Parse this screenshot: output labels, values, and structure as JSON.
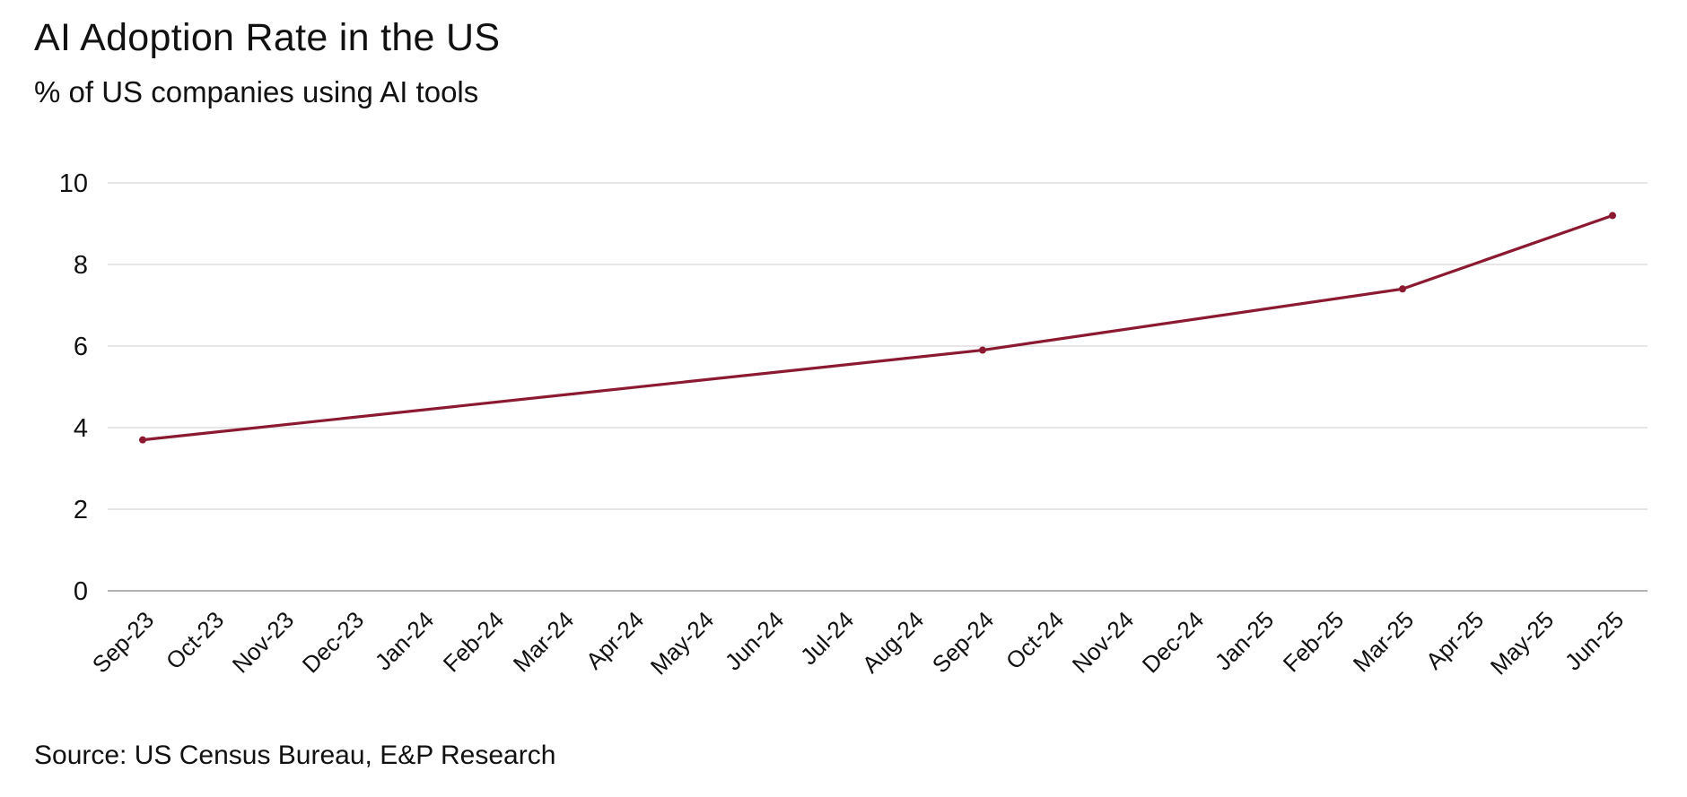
{
  "chart_data": {
    "type": "line",
    "title": "AI Adoption Rate in the US",
    "subtitle": "% of US companies using AI tools",
    "source": "Source: US Census Bureau, E&P Research",
    "xlabel": "",
    "ylabel": "",
    "categories": [
      "Sep-23",
      "Oct-23",
      "Nov-23",
      "Dec-23",
      "Jan-24",
      "Feb-24",
      "Mar-24",
      "Apr-24",
      "May-24",
      "Jun-24",
      "Jul-24",
      "Aug-24",
      "Sep-24",
      "Oct-24",
      "Nov-24",
      "Dec-24",
      "Jan-25",
      "Feb-25",
      "Mar-25",
      "Apr-25",
      "May-25",
      "Jun-25"
    ],
    "series": [
      {
        "name": "AI adoption rate",
        "color": "#8B1A30",
        "values": [
          3.7,
          null,
          null,
          null,
          null,
          null,
          null,
          null,
          null,
          null,
          null,
          null,
          5.9,
          null,
          null,
          null,
          null,
          null,
          7.4,
          null,
          null,
          9.2
        ]
      }
    ],
    "ylim": [
      0,
      10
    ],
    "yticks": [
      0,
      2,
      4,
      6,
      8,
      10
    ],
    "grid": true,
    "legend": "none"
  }
}
